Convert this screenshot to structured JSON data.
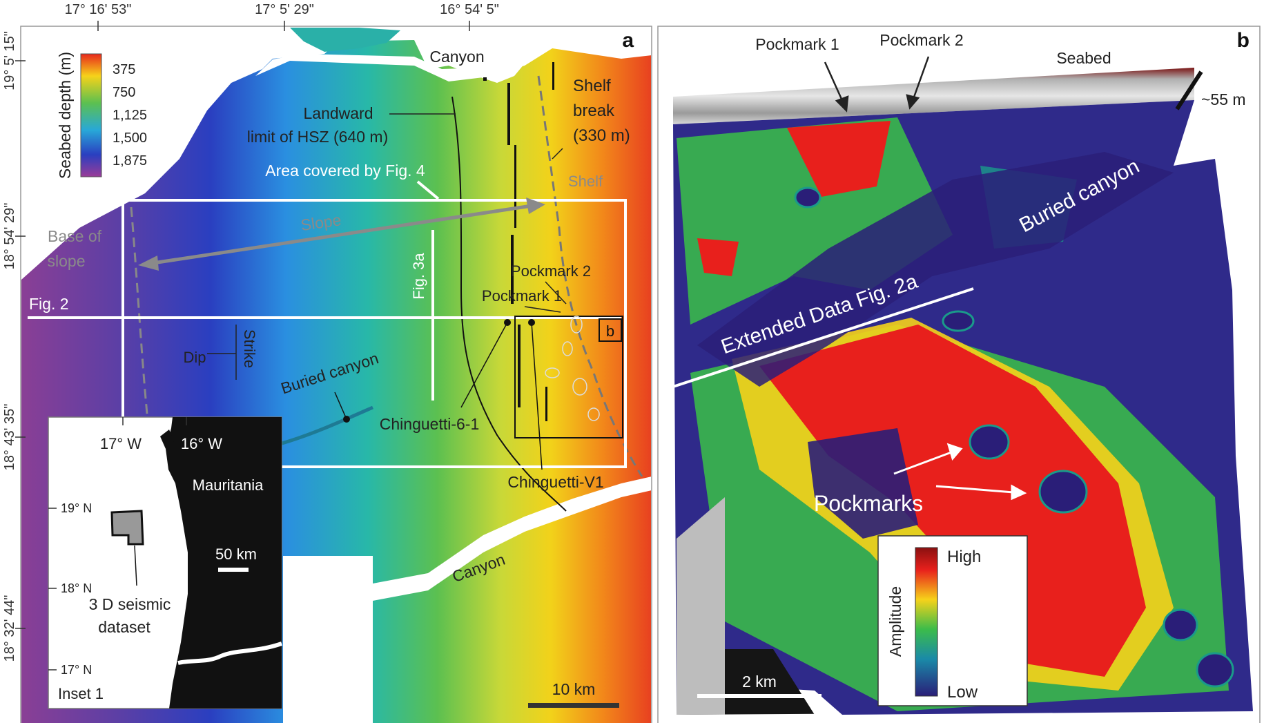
{
  "panel_a": {
    "letter": "a",
    "top_ticks": [
      "17° 16' 53\"",
      "17° 5' 29\"",
      "16° 54' 5\""
    ],
    "side_ticks": [
      "19° 5' 15\"",
      "18° 54' 29\"",
      "18° 43' 35\"",
      "18° 32' 44\""
    ],
    "colorbar": {
      "title": "Seabed depth (m)",
      "labels": [
        "375",
        "750",
        "1,125",
        "1,500",
        "1,875"
      ]
    },
    "labels": {
      "canyon_north": "Canyon",
      "shelf_break_1": "Shelf",
      "shelf_break_2": "break",
      "shelf_break_3": "(330 m)",
      "hsz_1": "Landward",
      "hsz_2": "limit of HSZ (640 m)",
      "area_fig4": "Area covered by Fig. 4",
      "shelf": "Shelf",
      "slope": "Slope",
      "base_1": "Base of",
      "base_2": "slope",
      "fig3a": "Fig. 3a",
      "pockmark2": "Pockmark 2",
      "pockmark1": "Pockmark 1",
      "fig2": "Fig. 2",
      "box_b": "b",
      "dip": "Dip",
      "strike": "Strike",
      "buried_canyon": "Buried canyon",
      "chinguetti61": "Chinguetti-6-1",
      "chinguettiv1": "Chinguetti-V1",
      "canyon_south": "Canyon",
      "scale": "10 km"
    },
    "inset": {
      "lon_1": "17° W",
      "lon_2": "16° W",
      "lat_1": "19° N",
      "lat_2": "18° N",
      "lat_3": "17° N",
      "country": "Mauritania",
      "scale": "50 km",
      "dataset_1": "3 D seismic",
      "dataset_2": "dataset",
      "title": "Inset 1"
    }
  },
  "panel_b": {
    "letter": "b",
    "labels": {
      "pockmark1": "Pockmark 1",
      "pockmark2": "Pockmark 2",
      "seabed": "Seabed",
      "depth": "~55 m",
      "buried_canyon": "Buried canyon",
      "extended": "Extended Data Fig. 2a",
      "pockmarks": "Pockmarks",
      "scale": "2 km"
    },
    "legend": {
      "title": "Amplitude",
      "high": "High",
      "low": "Low"
    }
  },
  "colors": {
    "depth_shallow": "#e83a20",
    "depth_deep": "#7a3aa8",
    "amp_high": "#e8201c",
    "amp_low": "#2a1e78"
  }
}
